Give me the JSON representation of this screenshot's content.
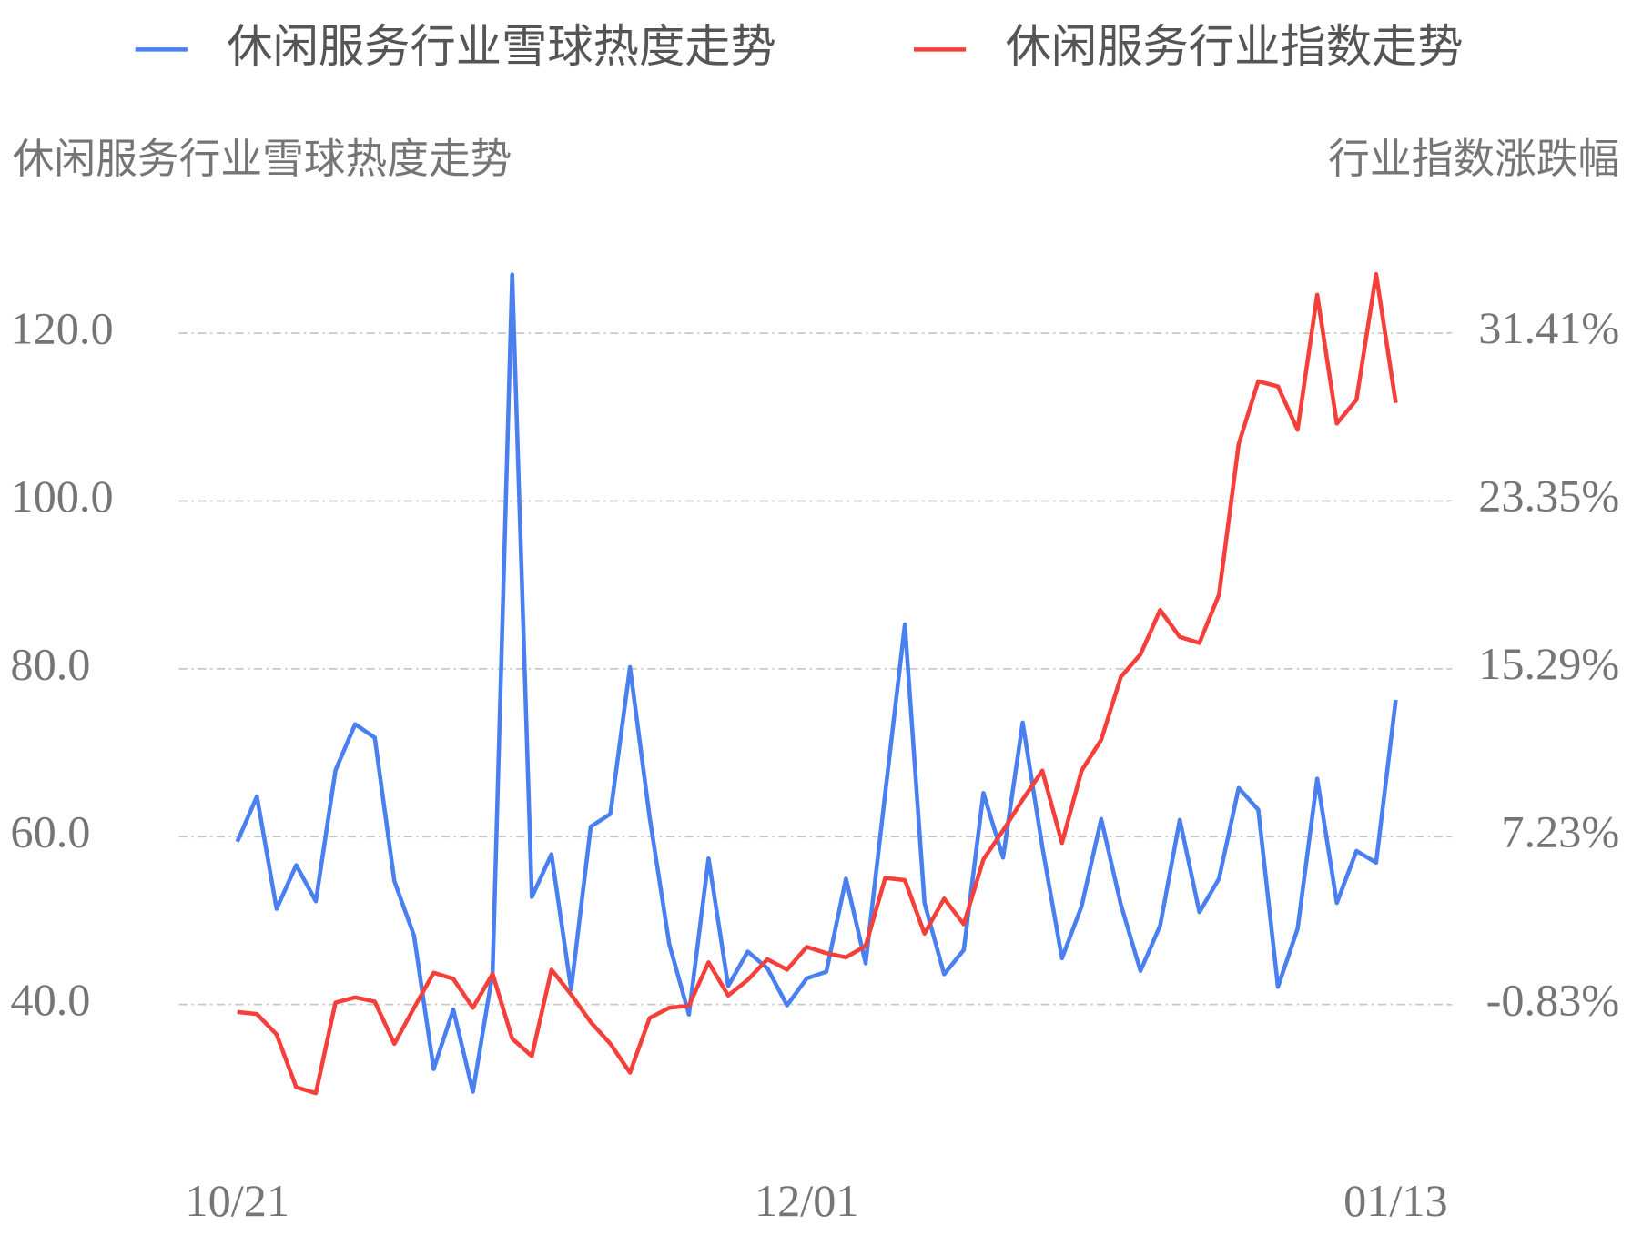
{
  "chart_data": {
    "type": "line",
    "legend_position": "top",
    "ylabel": "休闲服务行业雪球热度走势",
    "y2label": "行业指数涨跌幅",
    "categories": [
      "10/21",
      null,
      null,
      null,
      null,
      null,
      null,
      null,
      null,
      null,
      null,
      null,
      null,
      null,
      null,
      null,
      null,
      null,
      null,
      null,
      null,
      null,
      null,
      null,
      null,
      null,
      null,
      null,
      null,
      "12/01",
      null,
      null,
      null,
      null,
      null,
      null,
      null,
      null,
      null,
      null,
      null,
      null,
      null,
      null,
      null,
      null,
      null,
      null,
      null,
      null,
      null,
      null,
      null,
      null,
      null,
      null,
      null,
      null,
      null,
      "01/13"
    ],
    "series": [
      {
        "name": "休闲服务行业雪球热度走势",
        "color": "#4a7ff0",
        "axis": "y",
        "values": [
          59.4,
          64.8,
          51.4,
          56.6,
          52.3,
          67.9,
          73.4,
          71.8,
          54.7,
          48.2,
          32.3,
          39.4,
          29.6,
          43.7,
          127.0,
          52.8,
          57.9,
          41.8,
          61.2,
          62.7,
          80.2,
          62.3,
          47.2,
          38.8,
          57.4,
          42.2,
          46.3,
          44.3,
          39.9,
          43.1,
          43.9,
          55.0,
          44.9,
          65.2,
          85.3,
          52.1,
          43.6,
          46.5,
          65.2,
          57.5,
          73.6,
          58.8,
          45.5,
          51.7,
          62.1,
          51.9,
          44.0,
          49.4,
          62.0,
          51.0,
          55.0,
          65.8,
          63.2,
          42.1,
          49.0,
          66.9,
          52.1,
          58.3,
          56.9,
          76.3
        ]
      },
      {
        "name": "休闲服务行业指数走势",
        "color": "#f43f3a",
        "axis": "y2",
        "values": [
          -1.18,
          -1.28,
          -2.26,
          -4.79,
          -5.08,
          -0.73,
          -0.48,
          -0.68,
          -2.71,
          -0.98,
          0.7,
          0.41,
          -0.98,
          0.65,
          -2.46,
          -3.3,
          0.85,
          -0.34,
          -1.67,
          -2.71,
          -4.09,
          -1.47,
          -0.98,
          -0.88,
          1.2,
          -0.39,
          0.36,
          1.35,
          0.85,
          1.94,
          1.64,
          1.44,
          1.99,
          5.25,
          5.15,
          2.58,
          4.26,
          3.03,
          6.14,
          7.53,
          9.01,
          10.4,
          6.93,
          10.4,
          11.88,
          14.9,
          15.98,
          18.11,
          16.82,
          16.53,
          18.85,
          26.07,
          29.09,
          28.84,
          26.76,
          33.24,
          27.06,
          28.2,
          34.23,
          28.05
        ]
      }
    ],
    "ylim": [
      25,
      130
    ],
    "yticks": [
      {
        "value": 40,
        "label": "40.0"
      },
      {
        "value": 60,
        "label": "60.0"
      },
      {
        "value": 80,
        "label": "80.0"
      },
      {
        "value": 100,
        "label": "100.0"
      },
      {
        "value": 120,
        "label": "120.0"
      }
    ],
    "y2lim": [
      -6.86,
      35.42
    ],
    "y2ticks": [
      {
        "value": -0.83,
        "label": "-0.83%"
      },
      {
        "value": 7.23,
        "label": "7.23%"
      },
      {
        "value": 15.29,
        "label": "15.29%"
      },
      {
        "value": 23.35,
        "label": "23.35%"
      },
      {
        "value": 31.41,
        "label": "31.41%"
      }
    ],
    "grid": true
  }
}
